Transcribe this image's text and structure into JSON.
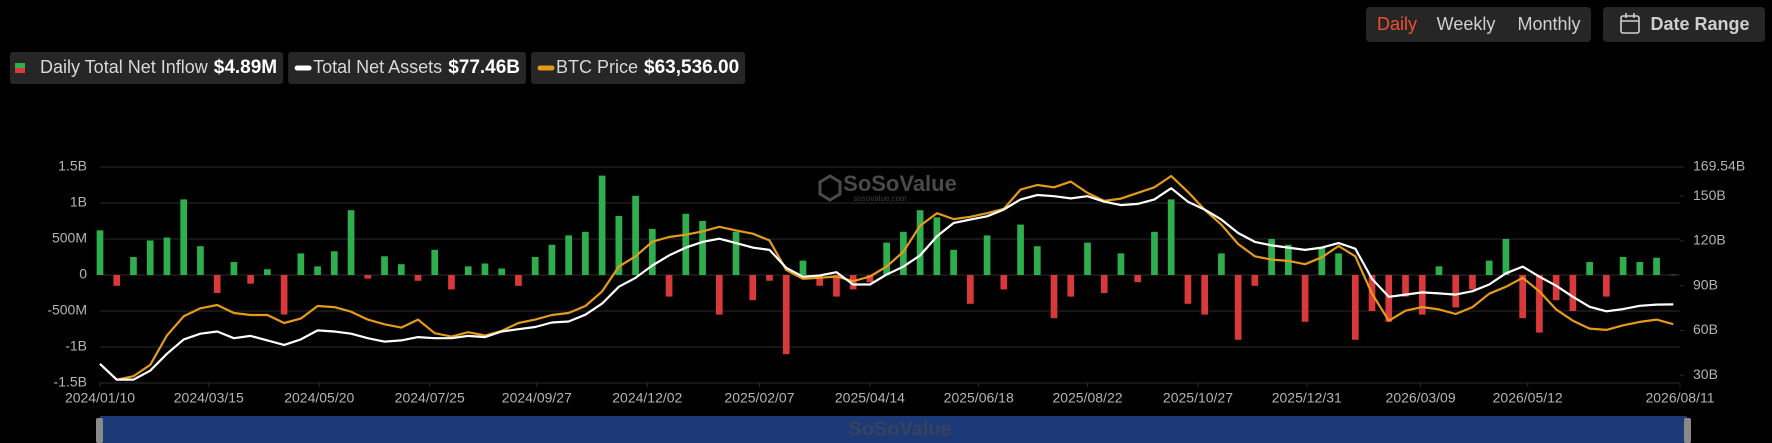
{
  "controls": {
    "periods": [
      "Daily",
      "Weekly",
      "Monthly"
    ],
    "date_range": "Date Range"
  },
  "chart_data": {
    "type": "bar",
    "watermark": "SoSoValue",
    "watermark_url": "sosovalue.com",
    "x": [
      "2024/01/10",
      "2024/01/20",
      "2024/01/30",
      "2024/02/09",
      "2024/02/19",
      "2024/02/29",
      "2024/03/10",
      "2024/03/20",
      "2024/03/30",
      "2024/04/09",
      "2024/04/19",
      "2024/04/29",
      "2024/05/09",
      "2024/05/19",
      "2024/05/29",
      "2024/06/08",
      "2024/06/18",
      "2024/06/28",
      "2024/07/08",
      "2024/07/18",
      "2024/07/28",
      "2024/08/07",
      "2024/08/17",
      "2024/08/27",
      "2024/09/06",
      "2024/09/16",
      "2024/09/26",
      "2024/10/06",
      "2024/10/16",
      "2024/10/26",
      "2024/11/05",
      "2024/11/15",
      "2024/11/25",
      "2024/12/05",
      "2024/12/15",
      "2024/12/25",
      "2025/01/04",
      "2025/01/14",
      "2025/01/24",
      "2025/02/03",
      "2025/02/13",
      "2025/02/23",
      "2025/03/05",
      "2025/03/15",
      "2025/03/25",
      "2025/04/04",
      "2025/04/14",
      "2025/04/24",
      "2025/05/04",
      "2025/05/14",
      "2025/05/24",
      "2025/06/03",
      "2025/06/13",
      "2025/06/23",
      "2025/07/03",
      "2025/07/13",
      "2025/07/23",
      "2025/08/02",
      "2025/08/12",
      "2025/08/22",
      "2025/09/01",
      "2025/09/11",
      "2025/09/21",
      "2025/10/01",
      "2025/10/11",
      "2025/10/21",
      "2025/10/31",
      "2025/11/10",
      "2025/11/20",
      "2025/11/30",
      "2025/12/10",
      "2025/12/20",
      "2025/12/30",
      "2026/01/09",
      "2026/01/19",
      "2026/01/29",
      "2026/02/08",
      "2026/02/18",
      "2026/02/28",
      "2026/03/10",
      "2026/03/20",
      "2026/03/30",
      "2026/04/09",
      "2026/04/19",
      "2026/04/29",
      "2026/05/09",
      "2026/05/19",
      "2026/05/29",
      "2026/06/08",
      "2026/06/18",
      "2026/06/28",
      "2026/07/08",
      "2026/07/18",
      "2026/07/28",
      "2026/08/07"
    ],
    "xlim": [
      "2024/01/10",
      "2026/08/11"
    ],
    "xticks": [
      "2024/01/10",
      "2024/03/15",
      "2024/05/20",
      "2024/07/25",
      "2024/09/27",
      "2024/12/02",
      "2025/02/07",
      "2025/04/14",
      "2025/06/18",
      "2025/08/22",
      "2025/10/27",
      "2025/12/31",
      "2026/03/09",
      "2026/05/12",
      "2026/08/11"
    ],
    "ylim": [
      -1500000000.0,
      1500000000.0
    ],
    "yticks": [
      {
        "value": -1500000000.0,
        "label": "-1.5B"
      },
      {
        "value": -1000000000.0,
        "label": "-1B"
      },
      {
        "value": -500000000.0,
        "label": "-500M"
      },
      0,
      {
        "value": 500000000.0,
        "label": "500M"
      },
      {
        "value": 1000000000.0,
        "label": "1B"
      },
      {
        "value": 1500000000.0,
        "label": "1.5B"
      }
    ],
    "y2lim": [
      24750000000.0,
      169540000000.0
    ],
    "y2ticks": [
      {
        "value": 30000000000.0,
        "label": "30B"
      },
      {
        "value": 60000000000.0,
        "label": "60B"
      },
      {
        "value": 90000000000.0,
        "label": "90B"
      },
      {
        "value": 120000000000.0,
        "label": "120B"
      },
      {
        "value": 150000000000.0,
        "label": "150B"
      },
      {
        "value": 169540000000.0,
        "label": "169.54B"
      }
    ],
    "y3lim": [
      40600,
      124800
    ],
    "grid": true,
    "series": [
      {
        "name": "Daily Total Net Inflow",
        "legend_value": "$4.89M",
        "type": "bar",
        "axis": "y",
        "color": "#2fae4e",
        "negative_color": "#d8393b",
        "values": [
          620000000.0,
          -150000000.0,
          250000000.0,
          480000000.0,
          520000000.0,
          1050000000.0,
          400000000.0,
          -250000000.0,
          180000000.0,
          -120000000.0,
          80000000.0,
          -550000000.0,
          300000000.0,
          120000000.0,
          330000000.0,
          900000000.0,
          -50000000.0,
          260000000.0,
          150000000.0,
          -80000000.0,
          350000000.0,
          -200000000.0,
          120000000.0,
          160000000.0,
          90000000.0,
          -150000000.0,
          250000000.0,
          420000000.0,
          550000000.0,
          600000000.0,
          1380000000.0,
          820000000.0,
          1100000000.0,
          640000000.0,
          -300000000.0,
          850000000.0,
          750000000.0,
          -550000000.0,
          600000000.0,
          -350000000.0,
          -80000000.0,
          -1100000000.0,
          200000000.0,
          -150000000.0,
          -300000000.0,
          -200000000.0,
          -100000000.0,
          450000000.0,
          600000000.0,
          900000000.0,
          800000000.0,
          350000000.0,
          -400000000.0,
          550000000.0,
          -200000000.0,
          700000000.0,
          400000000.0,
          -600000000.0,
          -300000000.0,
          450000000.0,
          -250000000.0,
          300000000.0,
          -100000000.0,
          600000000.0,
          1050000000.0,
          -400000000.0,
          -550000000.0,
          300000000.0,
          -900000000.0,
          -150000000.0,
          500000000.0,
          420000000.0,
          -650000000.0,
          380000000.0,
          300000000.0,
          -900000000.0,
          -500000000.0,
          -650000000.0,
          -300000000.0,
          -550000000.0,
          120000000.0,
          -450000000.0,
          -200000000.0,
          200000000.0,
          500000000.0,
          -600000000.0,
          -800000000.0,
          -350000000.0,
          -500000000.0,
          180000000.0,
          -300000000.0,
          250000000.0,
          180000000.0,
          240000000.0,
          4890000.0
        ]
      },
      {
        "name": "Total Net Assets",
        "legend_value": "$77.46B",
        "type": "line",
        "axis": "y2",
        "color": "#ffffff",
        "values": [
          37500000000.0,
          27000000000.0,
          27000000000.0,
          33000000000.0,
          44300000000.0,
          54000000000.0,
          57800000000.0,
          59300000000.0,
          54800000000.0,
          56300000000.0,
          53300000000.0,
          50300000000.0,
          54000000000.0,
          60000000000.0,
          59300000000.0,
          57800000000.0,
          54800000000.0,
          52500000000.0,
          53300000000.0,
          55500000000.0,
          54800000000.0,
          54800000000.0,
          56300000000.0,
          55500000000.0,
          59300000000.0,
          60800000000.0,
          62300000000.0,
          65300000000.0,
          66000000000.0,
          70500000000.0,
          78000000000.0,
          89300000000.0,
          95300000000.0,
          103500000000.0,
          110300000000.0,
          115500000000.0,
          119300000000.0,
          121500000000.0,
          118500000000.0,
          115500000000.0,
          114000000000.0,
          102000000000.0,
          96000000000.0,
          96800000000.0,
          99000000000.0,
          90800000000.0,
          90800000000.0,
          97500000000.0,
          102800000000.0,
          110300000000.0,
          123000000000.0,
          132000000000.0,
          134300000000.0,
          136500000000.0,
          141000000000.0,
          147800000000.0,
          150800000000.0,
          150000000000.0,
          148500000000.0,
          150000000000.0,
          146300000000.0,
          144000000000.0,
          144800000000.0,
          147800000000.0,
          155300000000.0,
          146300000000.0,
          141000000000.0,
          134300000000.0,
          125300000000.0,
          119300000000.0,
          117000000000.0,
          115500000000.0,
          114000000000.0,
          115500000000.0,
          118500000000.0,
          114800000000.0,
          94500000000.0,
          82500000000.0,
          84000000000.0,
          85500000000.0,
          84800000000.0,
          84000000000.0,
          86300000000.0,
          90800000000.0,
          98300000000.0,
          102800000000.0,
          96000000000.0,
          90000000000.0,
          82500000000.0,
          75800000000.0,
          72800000000.0,
          74300000000.0,
          76500000000.0,
          77300000000.0,
          77460000000.0
        ]
      },
      {
        "name": "BTC Price",
        "legend_value": "$63,536.00",
        "type": "line",
        "axis": "y3",
        "color": "#e39b1b",
        "values": [
          48100,
          41900,
          43250,
          47660,
          59100,
          66600,
          69700,
          71000,
          67900,
          67100,
          67100,
          64000,
          65700,
          70600,
          70200,
          68400,
          65300,
          63500,
          62200,
          65300,
          60000,
          58700,
          60400,
          59100,
          60900,
          64000,
          65300,
          67100,
          67900,
          70600,
          76300,
          86000,
          90000,
          95700,
          97500,
          98400,
          99700,
          101500,
          100100,
          98800,
          96200,
          84700,
          81200,
          81600,
          82100,
          80300,
          82100,
          86000,
          91800,
          101900,
          106800,
          104500,
          105400,
          106800,
          108500,
          116000,
          117800,
          116900,
          119100,
          114700,
          111600,
          112500,
          114700,
          116900,
          121300,
          115100,
          108100,
          102300,
          94800,
          90000,
          88700,
          88200,
          86900,
          89600,
          94000,
          90000,
          75400,
          64900,
          68800,
          70200,
          69300,
          67500,
          70200,
          75400,
          78100,
          81600,
          76300,
          69300,
          64900,
          61800,
          61300,
          63100,
          64400,
          65300,
          63536
        ]
      }
    ]
  }
}
